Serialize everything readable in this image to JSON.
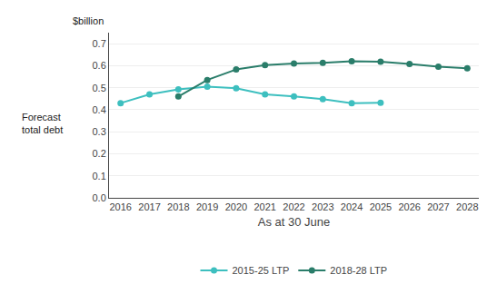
{
  "chart_data": {
    "type": "line",
    "xlabel": "As at 30 June",
    "ylabel": "Forecast\ntotal debt",
    "annotations": [
      "$billion"
    ],
    "series": [
      {
        "name": "2015-25 LTP",
        "color": "#3dbfbf",
        "marker": "circle",
        "x": [
          2016,
          2017,
          2018,
          2019,
          2020,
          2021,
          2022,
          2023,
          2024,
          2025
        ],
        "values": [
          0.43,
          0.47,
          0.492,
          0.505,
          0.498,
          0.47,
          0.46,
          0.448,
          0.43,
          0.432
        ]
      },
      {
        "name": "2018-28 LTP",
        "color": "#2a7d6a",
        "marker": "circle",
        "x": [
          2018,
          2019,
          2020,
          2021,
          2022,
          2023,
          2024,
          2025,
          2026,
          2027,
          2028
        ],
        "values": [
          0.46,
          0.535,
          0.583,
          0.603,
          0.61,
          0.613,
          0.62,
          0.618,
          0.608,
          0.595,
          0.588
        ]
      }
    ],
    "xlim": [
      2015.6,
      2028.4
    ],
    "xticks": [
      2016,
      2017,
      2018,
      2019,
      2020,
      2021,
      2022,
      2023,
      2024,
      2025,
      2026,
      2027,
      2028
    ],
    "ylim": [
      0.0,
      0.75
    ],
    "yticks": [
      {
        "value": 0.0,
        "label": "0.0"
      },
      0.1,
      0.2,
      0.3,
      0.4,
      0.5,
      0.6,
      0.7
    ],
    "grid": true,
    "legend": "bottom"
  }
}
